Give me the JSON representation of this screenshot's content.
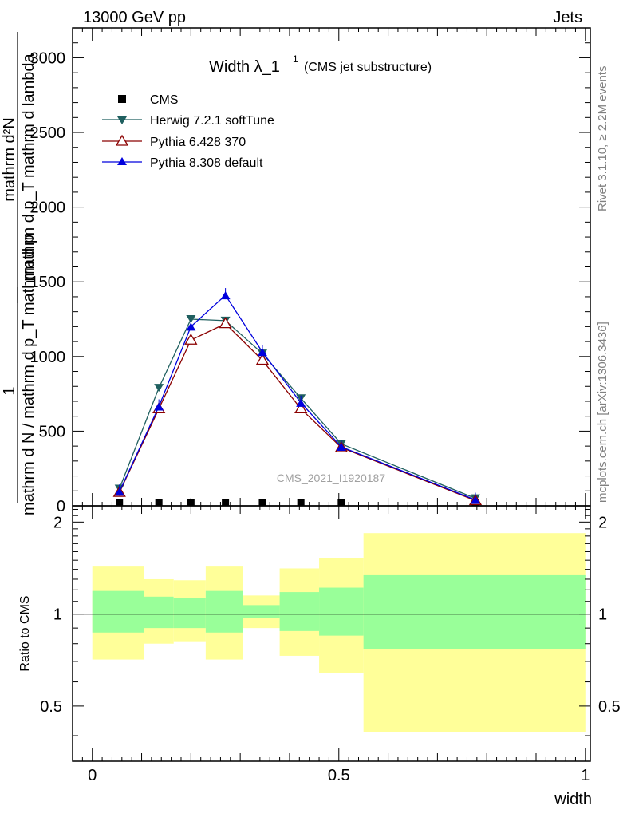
{
  "header": {
    "left": "13000 GeV pp",
    "right": "Jets",
    "rivet_label": "Rivet 3.1.10, ≥ 2.2M events",
    "mcplots_label": "mcplots.cern.ch [arXiv:1306.3436]",
    "watermark": "CMS_2021_I1920187"
  },
  "colors": {
    "cms": "#000000",
    "herwig": "#1f5f5f",
    "pythia6": "#8b0000",
    "pythia8": "#0000dd",
    "band_inner": "#99ff99",
    "band_outer": "#ffff99"
  },
  "chart_data": [
    {
      "type": "line",
      "title_main": "Width λ_1",
      "title_sup": "1",
      "title_sub": "(CMS jet substructure)",
      "ylabel_frac_num": "1",
      "ylabel_frac_den": "mathrm d N / mathrm d p_T mathrm d p",
      "ylabel_main_num": "mathrm d²N",
      "ylabel_main_den": "mathrm d p_T mathrm d lambda",
      "xlim": [
        -0.04,
        1.01
      ],
      "ylim": [
        0,
        3200
      ],
      "y_ticks": [
        0,
        500,
        1000,
        1500,
        2000,
        2500,
        3000
      ],
      "y_tick_labels": [
        "0",
        "500",
        "1000",
        "1500",
        "2000",
        "2500",
        "3000"
      ],
      "legend_position": "top-left",
      "series": [
        {
          "name": "CMS",
          "marker": "square",
          "x": [
            0.055,
            0.135,
            0.2,
            0.27,
            0.345,
            0.423,
            0.505,
            0.777
          ],
          "y": [
            0,
            0,
            0,
            0,
            0,
            0,
            0,
            0
          ]
        },
        {
          "name": "Herwig 7.2.1 softTune",
          "marker": "triangle-down",
          "x": [
            0.055,
            0.135,
            0.2,
            0.27,
            0.345,
            0.423,
            0.505,
            0.777
          ],
          "y": [
            115,
            790,
            1250,
            1240,
            1020,
            720,
            415,
            50
          ]
        },
        {
          "name": "Pythia 6.428 370",
          "marker": "triangle-open",
          "x": [
            0.055,
            0.135,
            0.2,
            0.27,
            0.345,
            0.423,
            0.505,
            0.777
          ],
          "y": [
            90,
            650,
            1110,
            1220,
            975,
            650,
            390,
            35
          ]
        },
        {
          "name": "Pythia 8.308 default",
          "marker": "triangle-up",
          "x": [
            0.055,
            0.135,
            0.2,
            0.27,
            0.345,
            0.423,
            0.505,
            0.777
          ],
          "y": [
            95,
            665,
            1200,
            1410,
            1030,
            690,
            395,
            40
          ]
        }
      ]
    },
    {
      "type": "area",
      "ylabel": "Ratio to CMS",
      "xlabel": "width",
      "xlim": [
        -0.04,
        1.01
      ],
      "ylim": [
        0.33,
        2.26
      ],
      "y_scale": "log",
      "y_ticks": [
        0.5,
        1,
        2
      ],
      "y_tick_labels": [
        "0.5",
        "1",
        "2"
      ],
      "x_ticks": [
        0,
        0.5,
        1
      ],
      "x_tick_labels": [
        "0",
        "0.5",
        "1"
      ],
      "reference": 1,
      "bins": [
        {
          "x_low": 0.0,
          "x_high": 0.105,
          "inner": [
            0.87,
            1.19
          ],
          "outer": [
            0.71,
            1.43
          ]
        },
        {
          "x_low": 0.105,
          "x_high": 0.165,
          "inner": [
            0.9,
            1.14
          ],
          "outer": [
            0.8,
            1.3
          ]
        },
        {
          "x_low": 0.165,
          "x_high": 0.23,
          "inner": [
            0.9,
            1.13
          ],
          "outer": [
            0.81,
            1.29
          ]
        },
        {
          "x_low": 0.23,
          "x_high": 0.305,
          "inner": [
            0.87,
            1.19
          ],
          "outer": [
            0.71,
            1.43
          ]
        },
        {
          "x_low": 0.305,
          "x_high": 0.38,
          "inner": [
            0.97,
            1.07
          ],
          "outer": [
            0.9,
            1.15
          ]
        },
        {
          "x_low": 0.38,
          "x_high": 0.46,
          "inner": [
            0.88,
            1.18
          ],
          "outer": [
            0.73,
            1.41
          ]
        },
        {
          "x_low": 0.46,
          "x_high": 0.55,
          "inner": [
            0.85,
            1.22
          ],
          "outer": [
            0.64,
            1.52
          ]
        },
        {
          "x_low": 0.55,
          "x_high": 1.0,
          "inner": [
            0.77,
            1.34
          ],
          "outer": [
            0.41,
            1.84
          ]
        }
      ]
    }
  ]
}
